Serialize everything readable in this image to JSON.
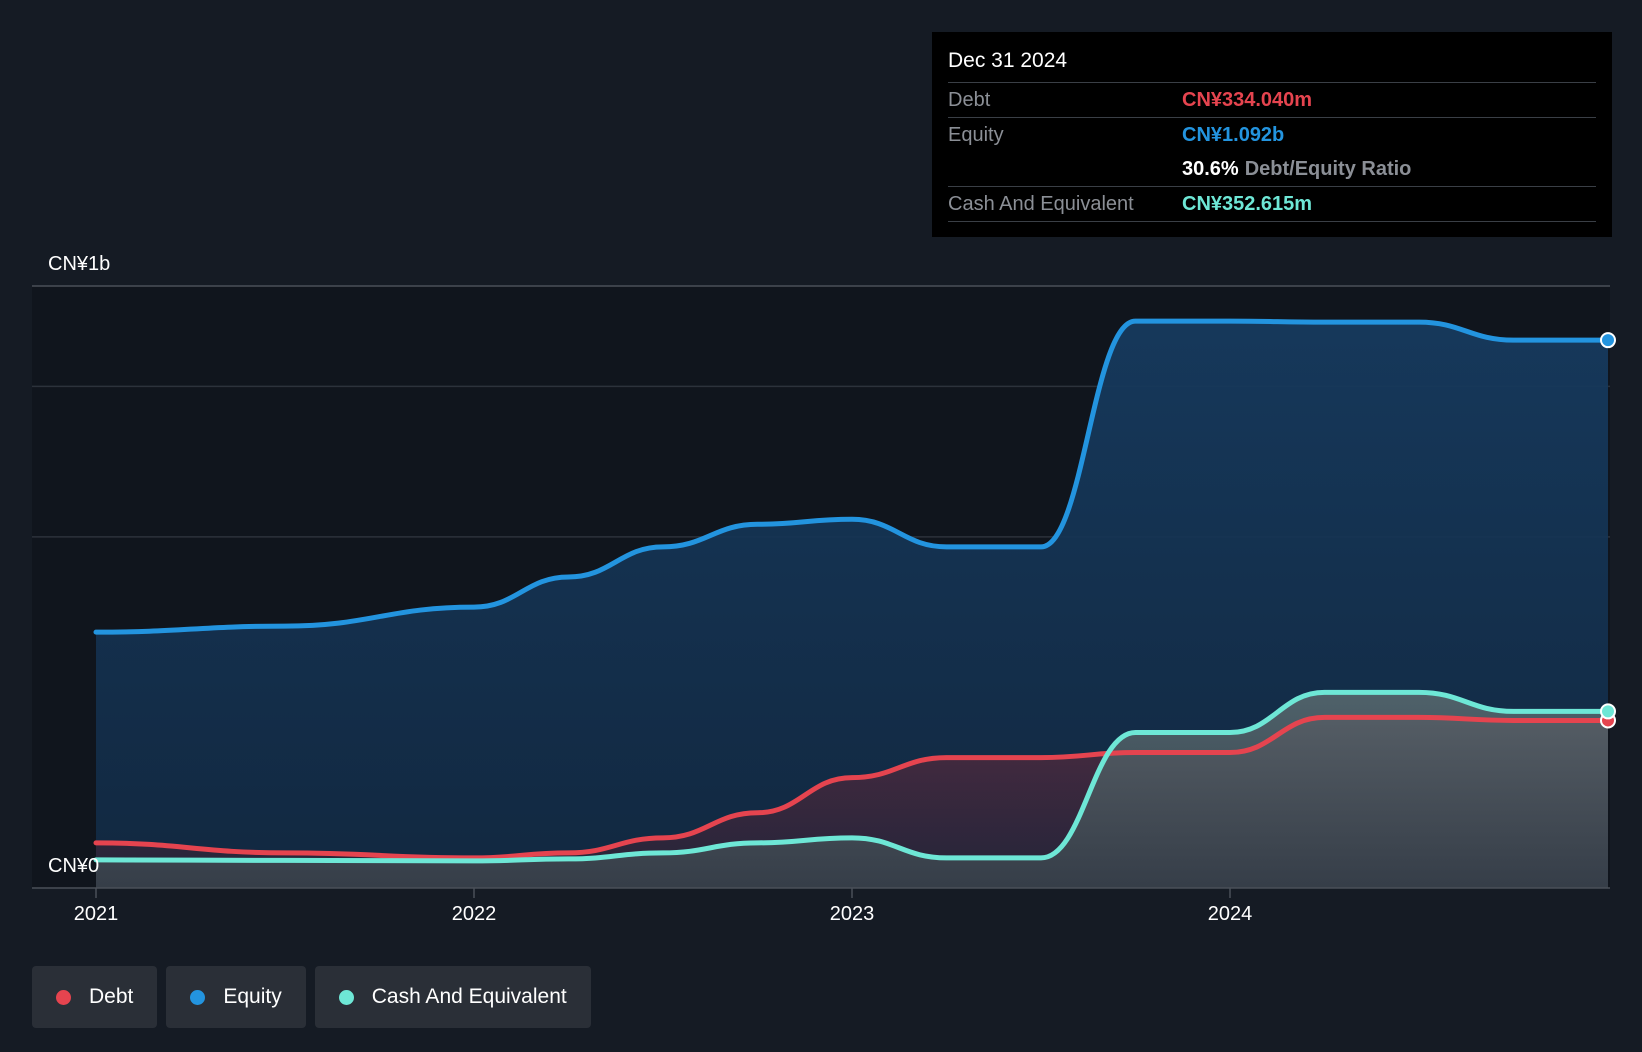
{
  "tooltip": {
    "date": "Dec 31 2024",
    "debt_label": "Debt",
    "debt_value": "CN¥334.040m",
    "equity_label": "Equity",
    "equity_value": "CN¥1.092b",
    "ratio_value": "30.6%",
    "ratio_label": "Debt/Equity Ratio",
    "cash_label": "Cash And Equivalent",
    "cash_value": "CN¥352.615m"
  },
  "legend": {
    "debt": "Debt",
    "equity": "Equity",
    "cash": "Cash And Equivalent"
  },
  "colors": {
    "debt": "#e5444f",
    "equity": "#2394df",
    "cash": "#6ee7d6",
    "background": "#151b24"
  },
  "chart_data": {
    "type": "area",
    "ylim": [
      0,
      1200
    ],
    "y_unit": "CN¥ millions",
    "y_tick_labels": [
      {
        "value": 1200,
        "label": "CN¥1b"
      },
      {
        "value": 0,
        "label": "CN¥0"
      }
    ],
    "gridlines": [
      700,
      1000,
      1200
    ],
    "x_range": [
      2021.0,
      2025.0
    ],
    "x_ticks": [
      {
        "value": 2021,
        "label": "2021"
      },
      {
        "value": 2022,
        "label": "2022"
      },
      {
        "value": 2023,
        "label": "2023"
      },
      {
        "value": 2024,
        "label": "2024"
      }
    ],
    "series": [
      {
        "name": "Equity",
        "key": "equity",
        "x": [
          2021.0,
          2021.5,
          2022.0,
          2022.25,
          2022.5,
          2022.75,
          2023.0,
          2023.25,
          2023.5,
          2023.75,
          2024.0,
          2024.25,
          2024.5,
          2024.75,
          2025.0
        ],
        "values": [
          510,
          522,
          560,
          620,
          680,
          725,
          735,
          680,
          680,
          1130,
          1130,
          1128,
          1128,
          1092,
          1092
        ]
      },
      {
        "name": "Debt",
        "key": "debt",
        "x": [
          2021.0,
          2021.5,
          2022.0,
          2022.25,
          2022.5,
          2022.75,
          2023.0,
          2023.25,
          2023.5,
          2023.75,
          2024.0,
          2024.25,
          2024.5,
          2024.75,
          2025.0
        ],
        "values": [
          90,
          70,
          60,
          70,
          100,
          150,
          220,
          260,
          260,
          270,
          270,
          340,
          340,
          334,
          334
        ]
      },
      {
        "name": "Cash And Equivalent",
        "key": "cash",
        "x": [
          2021.0,
          2021.5,
          2022.0,
          2022.25,
          2022.5,
          2022.75,
          2023.0,
          2023.25,
          2023.5,
          2023.75,
          2024.0,
          2024.25,
          2024.5,
          2024.75,
          2025.0
        ],
        "values": [
          56,
          55,
          54,
          58,
          70,
          90,
          100,
          60,
          60,
          310,
          310,
          390,
          390,
          352,
          352
        ]
      }
    ]
  }
}
